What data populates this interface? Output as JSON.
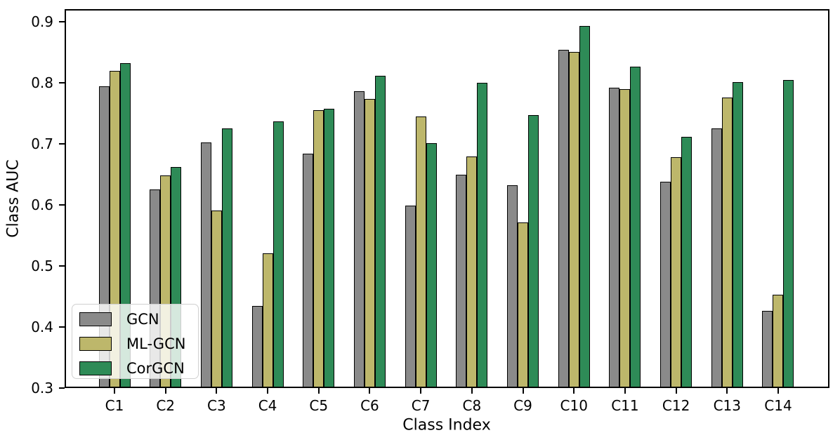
{
  "chart_data": {
    "type": "bar",
    "title": "",
    "xlabel": "Class Index",
    "ylabel": "Class AUC",
    "categories": [
      "C1",
      "C2",
      "C3",
      "C4",
      "C5",
      "C6",
      "C7",
      "C8",
      "C9",
      "C10",
      "C11",
      "C12",
      "C13",
      "C14"
    ],
    "series": [
      {
        "name": "GCN",
        "color": "#8a8a8a",
        "values": [
          0.795,
          0.625,
          0.702,
          0.435,
          0.684,
          0.786,
          0.599,
          0.65,
          0.632,
          0.854,
          0.792,
          0.638,
          0.725,
          0.427
        ]
      },
      {
        "name": "ML-GCN",
        "color": "#bdb76b",
        "values": [
          0.82,
          0.648,
          0.591,
          0.521,
          0.755,
          0.774,
          0.745,
          0.68,
          0.571,
          0.851,
          0.79,
          0.678,
          0.776,
          0.453
        ]
      },
      {
        "name": "CorGCN",
        "color": "#2e8b57",
        "values": [
          0.833,
          0.662,
          0.725,
          0.737,
          0.758,
          0.812,
          0.701,
          0.8,
          0.747,
          0.893,
          0.827,
          0.712,
          0.801,
          0.805
        ]
      }
    ],
    "ylim": [
      0.3,
      0.921
    ],
    "yticks": [
      0.3,
      0.4,
      0.5,
      0.6,
      0.7,
      0.8,
      0.9
    ],
    "ytick_labels": [
      "0.3",
      "0.4",
      "0.5",
      "0.6",
      "0.7",
      "0.8",
      "0.9"
    ],
    "grid": false,
    "legend_position": "lower left",
    "bar_edge_color": "#000000",
    "axis_color": "#000000"
  }
}
